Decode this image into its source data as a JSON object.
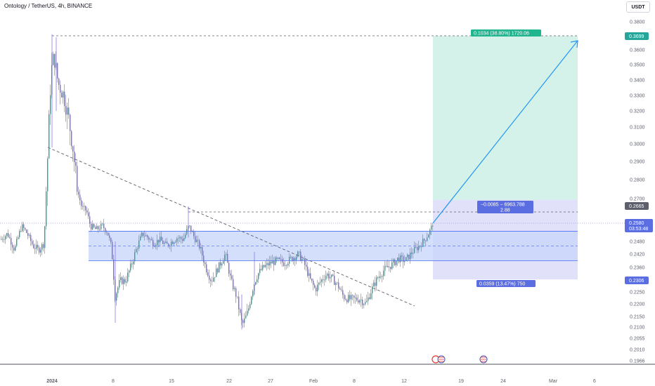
{
  "header": {
    "symbol_title": "Ontology / TetherUS, 4h, BINANCE",
    "currency_button": "USDT"
  },
  "colors": {
    "up": "#26a69a",
    "down": "#7b68ee",
    "zone_fill": "#c5d4fb",
    "zone_line": "#4a6cf7",
    "target_fill": "#d4f2ea",
    "stop_fill": "#e1e1f9",
    "arrow": "#2196f3",
    "trend_line": "#5d606b"
  },
  "chart_data": {
    "type": "candlestick",
    "title": "Ontology / TetherUS, 4h, BINANCE",
    "xlabel": "",
    "ylabel": "",
    "y_axis_labels": [
      "0.3800",
      "0.3600",
      "0.3500",
      "0.3400",
      "0.3300",
      "0.3200",
      "0.3100",
      "0.3000",
      "0.2900",
      "0.2800",
      "0.2700",
      "0.2480",
      "0.2420",
      "0.2360",
      "0.2250",
      "0.2200",
      "0.2150",
      "0.2100",
      "0.2055",
      "0.2010",
      "0.1966"
    ],
    "x_axis_labels": [
      "2024",
      "8",
      "15",
      "22",
      "27",
      "Feb",
      "8",
      "12",
      "19",
      "24",
      "Mar",
      "6"
    ],
    "ylim": [
      0.1966,
      0.38
    ],
    "legend": "none",
    "grid": false,
    "price_tags": [
      {
        "label": "target",
        "value": "0.3699",
        "color": "#26a69a"
      },
      {
        "label": "resistance",
        "value": "0.2665",
        "color": "#5d606b"
      },
      {
        "label": "last",
        "value": "0.2580",
        "sub": "03:53:48",
        "color": "#5b6ee1"
      },
      {
        "label": "stop",
        "value": "0.2306",
        "color": "#5b6ee1"
      }
    ],
    "annotations": {
      "target_box": "0.1034 (38.80%) 1720.06",
      "entry_box_line1": "−0.0085 − 6963.788",
      "entry_box_line2": "2.88",
      "stop_box": "0.0359 (13.47%) 750"
    },
    "zone": {
      "low": 0.239,
      "high": 0.2532
    },
    "path_hint": [
      {
        "t": 0,
        "v": 0.249
      },
      {
        "t": 10,
        "v": 0.252
      },
      {
        "t": 20,
        "v": 0.244
      },
      {
        "t": 30,
        "v": 0.256
      },
      {
        "t": 38,
        "v": 0.252
      },
      {
        "t": 46,
        "v": 0.246
      },
      {
        "t": 54,
        "v": 0.244
      },
      {
        "t": 62,
        "v": 0.247
      },
      {
        "t": 67,
        "v": 0.292
      },
      {
        "t": 72,
        "v": 0.345
      },
      {
        "t": 76,
        "v": 0.356
      },
      {
        "t": 82,
        "v": 0.338
      },
      {
        "t": 90,
        "v": 0.33
      },
      {
        "t": 97,
        "v": 0.315
      },
      {
        "t": 103,
        "v": 0.298
      },
      {
        "t": 109,
        "v": 0.275
      },
      {
        "t": 116,
        "v": 0.265
      },
      {
        "t": 122,
        "v": 0.264
      },
      {
        "t": 128,
        "v": 0.256
      },
      {
        "t": 136,
        "v": 0.254
      },
      {
        "t": 145,
        "v": 0.256
      },
      {
        "t": 152,
        "v": 0.253
      },
      {
        "t": 158,
        "v": 0.245
      },
      {
        "t": 163,
        "v": 0.223
      },
      {
        "t": 170,
        "v": 0.23
      },
      {
        "t": 178,
        "v": 0.23
      },
      {
        "t": 186,
        "v": 0.237
      },
      {
        "t": 194,
        "v": 0.245
      },
      {
        "t": 202,
        "v": 0.252
      },
      {
        "t": 210,
        "v": 0.25
      },
      {
        "t": 218,
        "v": 0.247
      },
      {
        "t": 226,
        "v": 0.249
      },
      {
        "t": 236,
        "v": 0.246
      },
      {
        "t": 244,
        "v": 0.248
      },
      {
        "t": 252,
        "v": 0.25
      },
      {
        "t": 260,
        "v": 0.249
      },
      {
        "t": 268,
        "v": 0.256
      },
      {
        "t": 276,
        "v": 0.25
      },
      {
        "t": 284,
        "v": 0.245
      },
      {
        "t": 292,
        "v": 0.236
      },
      {
        "t": 300,
        "v": 0.23
      },
      {
        "t": 310,
        "v": 0.236
      },
      {
        "t": 320,
        "v": 0.242
      },
      {
        "t": 328,
        "v": 0.23
      },
      {
        "t": 336,
        "v": 0.223
      },
      {
        "t": 344,
        "v": 0.211
      },
      {
        "t": 352,
        "v": 0.217
      },
      {
        "t": 360,
        "v": 0.228
      },
      {
        "t": 366,
        "v": 0.233
      },
      {
        "t": 374,
        "v": 0.236
      },
      {
        "t": 384,
        "v": 0.238
      },
      {
        "t": 394,
        "v": 0.239
      },
      {
        "t": 404,
        "v": 0.238
      },
      {
        "t": 414,
        "v": 0.24
      },
      {
        "t": 424,
        "v": 0.242
      },
      {
        "t": 432,
        "v": 0.238
      },
      {
        "t": 440,
        "v": 0.231
      },
      {
        "t": 448,
        "v": 0.226
      },
      {
        "t": 456,
        "v": 0.23
      },
      {
        "t": 464,
        "v": 0.233
      },
      {
        "t": 472,
        "v": 0.231
      },
      {
        "t": 480,
        "v": 0.228
      },
      {
        "t": 488,
        "v": 0.223
      },
      {
        "t": 496,
        "v": 0.222
      },
      {
        "t": 504,
        "v": 0.222
      },
      {
        "t": 512,
        "v": 0.222
      },
      {
        "t": 520,
        "v": 0.22
      },
      {
        "t": 528,
        "v": 0.226
      },
      {
        "t": 536,
        "v": 0.231
      },
      {
        "t": 546,
        "v": 0.235
      },
      {
        "t": 556,
        "v": 0.237
      },
      {
        "t": 566,
        "v": 0.24
      },
      {
        "t": 576,
        "v": 0.239
      },
      {
        "t": 586,
        "v": 0.243
      },
      {
        "t": 596,
        "v": 0.246
      },
      {
        "t": 604,
        "v": 0.249
      },
      {
        "t": 612,
        "v": 0.254
      },
      {
        "t": 616,
        "v": 0.258
      }
    ]
  }
}
